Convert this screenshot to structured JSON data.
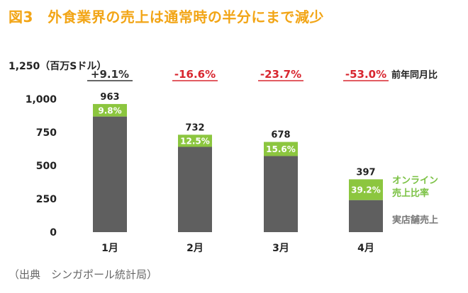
{
  "title": "図3　外食業界の売上は通常時の半分にまで減少",
  "source": "（出典　シンガポール統計局）",
  "colors": {
    "title": "#f2a516",
    "store_bar": "#5f5f5f",
    "online_bar": "#8cc63f",
    "positive_yoy": "#333333",
    "negative_yoy": "#d8262f"
  },
  "chart_data": {
    "type": "bar",
    "stacked": true,
    "unit_label": "1,250（百万Sドル）",
    "categories": [
      "1月",
      "2月",
      "3月",
      "4月"
    ],
    "totals": [
      963,
      732,
      678,
      397
    ],
    "total_labels": [
      "963",
      "732",
      "678",
      "397"
    ],
    "online_share_labels": [
      "9.8%",
      "12.5%",
      "15.6%",
      "39.2%"
    ],
    "online_share": [
      9.8,
      12.5,
      15.6,
      39.2
    ],
    "yoy_labels": [
      "+9.1%",
      "-16.6%",
      "-23.7%",
      "-53.0%"
    ],
    "yoy_legend": "前年同月比",
    "series": [
      {
        "name": "実店舗売上",
        "values": [
          869,
          641,
          572,
          241
        ]
      },
      {
        "name": "オンライン売上比率",
        "values": [
          94,
          91,
          106,
          156
        ]
      }
    ],
    "legend_online": [
      "オンライン",
      "売上比率"
    ],
    "ylim": [
      0,
      1250
    ],
    "yticks": [
      0,
      250,
      500,
      750,
      1000
    ],
    "ytick_labels": [
      "0",
      "250",
      "500",
      "750",
      "1,000"
    ]
  }
}
